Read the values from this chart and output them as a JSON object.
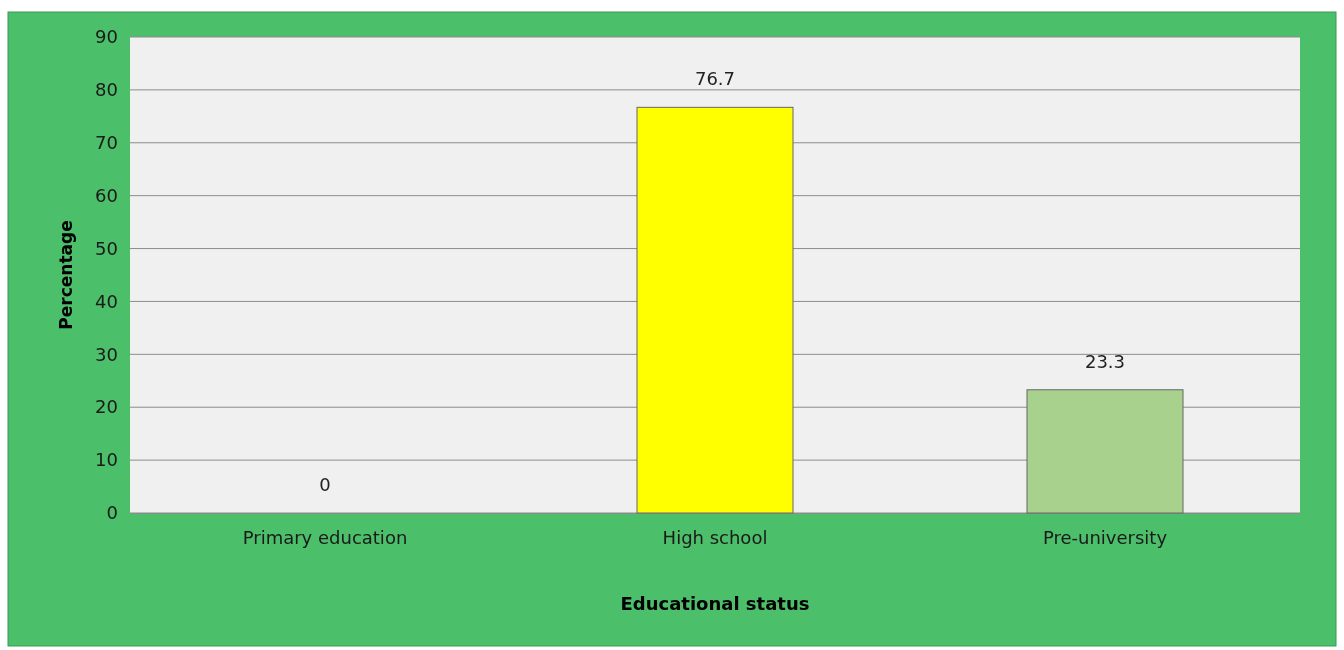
{
  "chart_data": {
    "type": "bar",
    "xlabel": "Educational status",
    "ylabel": "Percentage",
    "categories": [
      "Primary education",
      "High school",
      "Pre-university"
    ],
    "values": [
      0,
      76.7,
      23.3
    ],
    "colors": [
      "#4472c4",
      "#ffff00",
      "#a9d18e"
    ],
    "ylim": [
      0,
      90
    ],
    "yticks": [
      0,
      10,
      20,
      30,
      40,
      50,
      60,
      70,
      80,
      90
    ],
    "grid": "y",
    "data_labels": true
  }
}
